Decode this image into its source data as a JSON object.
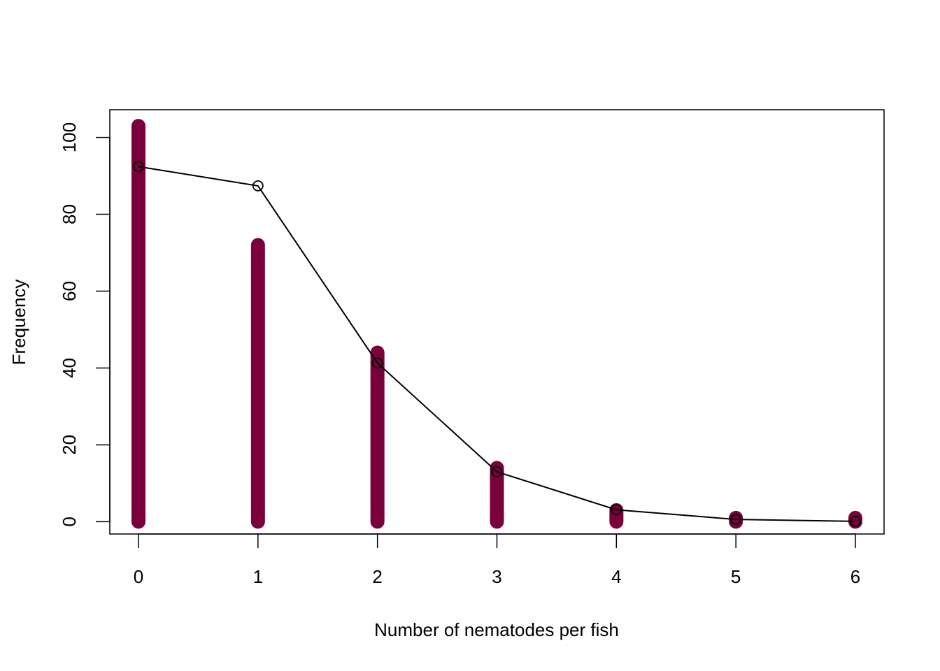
{
  "chart_data": {
    "type": "bar",
    "title": "",
    "xlabel": "Number of nematodes per fish",
    "ylabel": "Frequency",
    "categories": [
      "0",
      "1",
      "2",
      "3",
      "4",
      "5",
      "6"
    ],
    "x": [
      0,
      1,
      2,
      3,
      4,
      5,
      6
    ],
    "xlim": [
      -0.24,
      6.24
    ],
    "ylim": [
      -3.2,
      107.2
    ],
    "yticks": [
      0,
      20,
      40,
      60,
      80,
      100
    ],
    "xticks": [
      0,
      1,
      2,
      3,
      4,
      5,
      6
    ],
    "grid": false,
    "series": [
      {
        "kind": "spike-bars",
        "color": "#7a003c",
        "values": [
          103,
          72,
          44,
          14,
          3,
          1,
          1
        ]
      },
      {
        "kind": "line-with-open-circles",
        "color": "#000000",
        "values": [
          92.4,
          87.4,
          41.3,
          13.0,
          3.1,
          0.6,
          0.1
        ]
      }
    ]
  }
}
